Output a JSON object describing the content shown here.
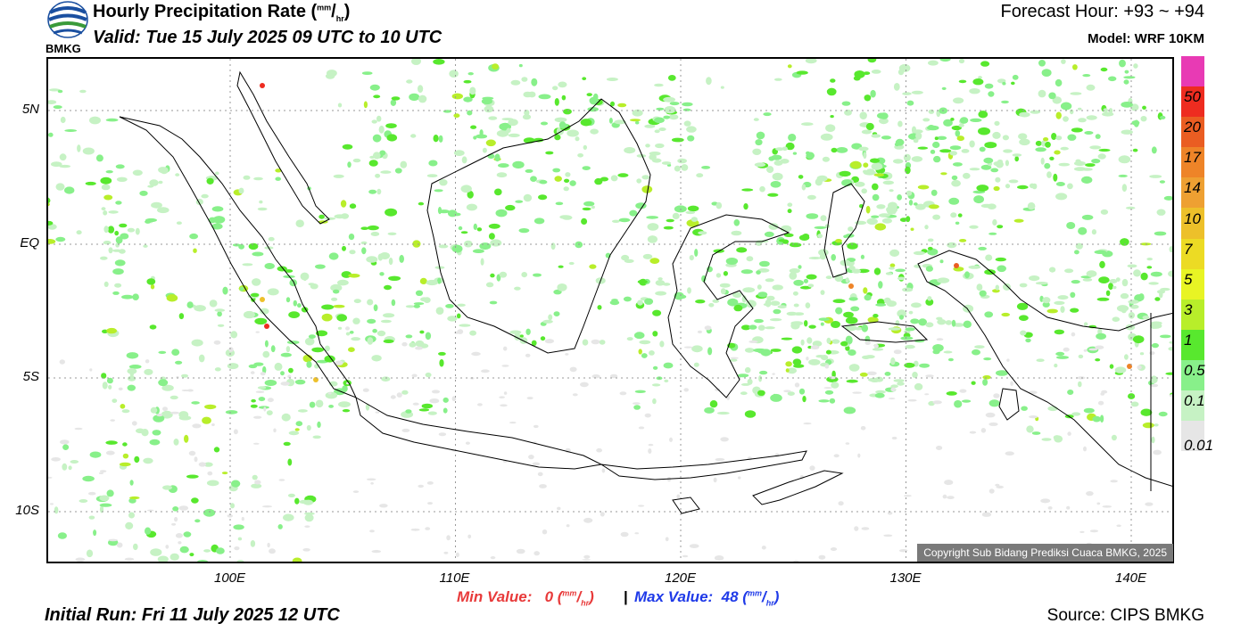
{
  "header": {
    "logo_text": "BMKG",
    "title_main": "Hourly Precipitation Rate (",
    "title_unit_num": "mm",
    "title_slash": "/",
    "title_unit_den": "hr",
    "title_close": ")",
    "valid": "Valid: Tue 15 July 2025 09 UTC to 10 UTC",
    "forecast_hour": "Forecast Hour: +93 ~ +94",
    "model": "Model: WRF 10KM"
  },
  "map": {
    "lat_labels": [
      {
        "label": "5N",
        "lat": 5
      },
      {
        "label": "EQ",
        "lat": 0
      },
      {
        "label": "5S",
        "lat": -5
      },
      {
        "label": "10S",
        "lat": -10
      }
    ],
    "lon_labels": [
      {
        "label": "100E",
        "lon": 100
      },
      {
        "label": "110E",
        "lon": 110
      },
      {
        "label": "120E",
        "lon": 120
      },
      {
        "label": "130E",
        "lon": 130
      },
      {
        "label": "140E",
        "lon": 140
      }
    ],
    "copyright": "Copyright Sub Bidang Prediksi Cuaca BMKG, 2025"
  },
  "colorbar": {
    "labels": [
      "0.01",
      "0.1",
      "0.5",
      "1",
      "3",
      "5",
      "7",
      "10",
      "14",
      "17",
      "20",
      "50"
    ],
    "colors": [
      "#e83ab4",
      "#ee2c20",
      "#ea5d22",
      "#ee8428",
      "#eea032",
      "#edc02a",
      "#ecdb24",
      "#e8f424",
      "#b8ee2a",
      "#58e82e",
      "#88f08a",
      "#c6f2c4",
      "#e6e6e6"
    ]
  },
  "footer": {
    "min_label": "Min Value:",
    "min_value": "0",
    "max_label": "Max Value:",
    "max_value": "48",
    "unit_num": "mm",
    "unit_den": "hr",
    "separator": "|",
    "initial_run": "Initial Run: Fri 11 July 2025 12 UTC",
    "source": "Source: CIPS BMKG"
  }
}
